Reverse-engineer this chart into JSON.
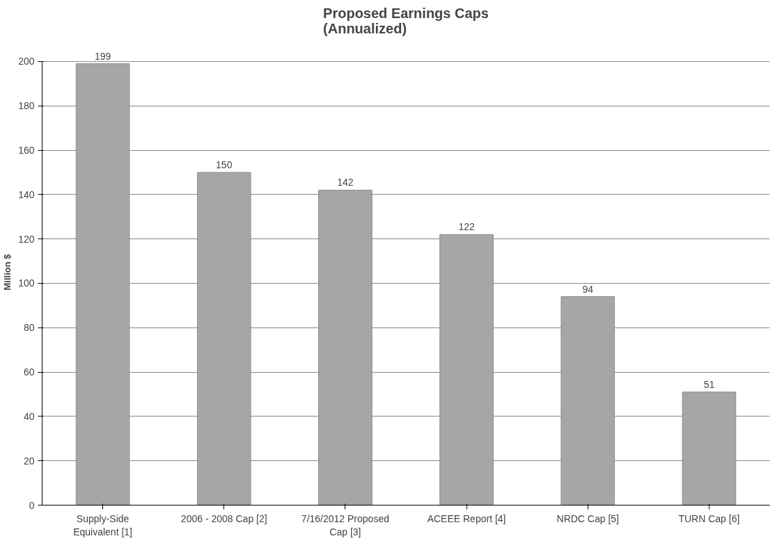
{
  "chart_data": {
    "type": "bar",
    "title": "Proposed Earnings Caps\n(Annualized)",
    "ylabel": "Million $",
    "categories": [
      "Supply-Side Equivalent [1]",
      "2006 - 2008 Cap [2]",
      "7/16/2012 Proposed Cap [3]",
      "ACEEE Report [4]",
      "NRDC Cap [5]",
      "TURN Cap [6]"
    ],
    "values": [
      199,
      150,
      142,
      122,
      94,
      51
    ],
    "color": "#a6a6a6",
    "ylim": [
      0,
      200
    ],
    "yticks": [
      0,
      20,
      40,
      60,
      80,
      100,
      120,
      140,
      160,
      180,
      200
    ],
    "grid": "y",
    "data_labels": true
  }
}
